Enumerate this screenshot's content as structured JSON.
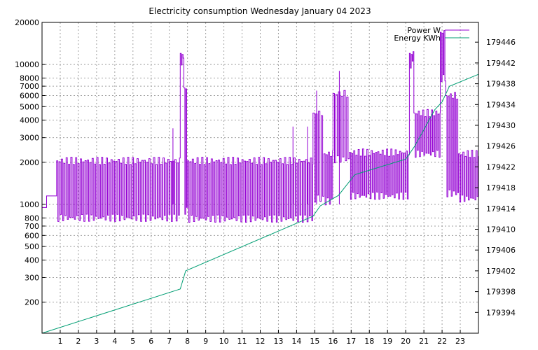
{
  "chart_data": {
    "type": "line",
    "title": "Electricity consumption Wednesday January 04 2023",
    "xlabel": "",
    "ylabel": "",
    "grid": true,
    "legend_position": "top-right",
    "x_range": [
      0,
      24
    ],
    "x_ticks": [
      1,
      2,
      3,
      4,
      5,
      6,
      7,
      8,
      9,
      10,
      11,
      12,
      13,
      14,
      15,
      16,
      17,
      18,
      19,
      20,
      21,
      22,
      23
    ],
    "y_left": {
      "scale": "log",
      "range": [
        120,
        20000
      ],
      "ticks": [
        200,
        300,
        400,
        500,
        600,
        700,
        800,
        1000,
        2000,
        3000,
        4000,
        5000,
        6000,
        7000,
        8000,
        10000,
        20000
      ]
    },
    "y_right": {
      "scale": "linear",
      "range": [
        179390,
        179449.8
      ],
      "ticks": [
        179394,
        179398,
        179402,
        179406,
        179410,
        179414,
        179418,
        179422,
        179426,
        179430,
        179434,
        179438,
        179442,
        179446
      ]
    },
    "series": [
      {
        "name": "Power W",
        "axis": "left",
        "color": "#9400d3",
        "segments": [
          {
            "x": [
              0,
              0.25
            ],
            "baseline": 950,
            "peak": 950,
            "cycle": 0.25
          },
          {
            "x": [
              0.25,
              0.8
            ],
            "baseline": 1150,
            "peak": 1150,
            "cycle": 0.55
          },
          {
            "x": [
              0.8,
              7.6
            ],
            "baseline": 800,
            "peak": 2050,
            "cycle": 0.13
          },
          {
            "x": [
              7.6,
              7.8
            ],
            "baseline": 10500,
            "peak": 12000,
            "cycle": 0.1
          },
          {
            "x": [
              7.8,
              8.0
            ],
            "baseline": 900,
            "peak": 6800,
            "cycle": 0.1
          },
          {
            "x": [
              8.0,
              14.9
            ],
            "baseline": 790,
            "peak": 2050,
            "cycle": 0.13
          },
          {
            "x": [
              14.9,
              15.5
            ],
            "baseline": 1100,
            "peak": 4500,
            "cycle": 0.15
          },
          {
            "x": [
              15.5,
              16.0
            ],
            "baseline": 1050,
            "peak": 2300,
            "cycle": 0.12
          },
          {
            "x": [
              16.0,
              16.9
            ],
            "baseline": 2100,
            "peak": 6200,
            "cycle": 0.15
          },
          {
            "x": [
              16.9,
              20.2
            ],
            "baseline": 1150,
            "peak": 2350,
            "cycle": 0.12
          },
          {
            "x": [
              20.2,
              20.45
            ],
            "baseline": 10000,
            "peak": 12000,
            "cycle": 0.1
          },
          {
            "x": [
              20.45,
              21.9
            ],
            "baseline": 2300,
            "peak": 4500,
            "cycle": 0.12
          },
          {
            "x": [
              21.9,
              22.2
            ],
            "baseline": 8000,
            "peak": 17000,
            "cycle": 0.1
          },
          {
            "x": [
              22.2,
              22.9
            ],
            "baseline": 1200,
            "peak": 6000,
            "cycle": 0.12
          },
          {
            "x": [
              22.9,
              24
            ],
            "baseline": 1100,
            "peak": 2300,
            "cycle": 0.12
          }
        ],
        "spikes": [
          {
            "x": 7.2,
            "y": 3500
          },
          {
            "x": 14.6,
            "y": 3600
          },
          {
            "x": 15.1,
            "y": 6500
          },
          {
            "x": 16.35,
            "y": 9000
          },
          {
            "x": 13.8,
            "y": 3600
          }
        ]
      },
      {
        "name": "Energy KWh",
        "axis": "right",
        "color": "#009e73",
        "x": [
          0,
          7.6,
          7.9,
          14.9,
          15.3,
          16.3,
          17.2,
          20.0,
          20.5,
          21.6,
          22.0,
          22.4,
          24
        ],
        "y": [
          179390,
          179398.5,
          179402,
          179412.5,
          179414.5,
          179416.5,
          179420.5,
          179423.5,
          179426,
          179433,
          179434.5,
          179437.5,
          179439.8
        ]
      }
    ]
  }
}
